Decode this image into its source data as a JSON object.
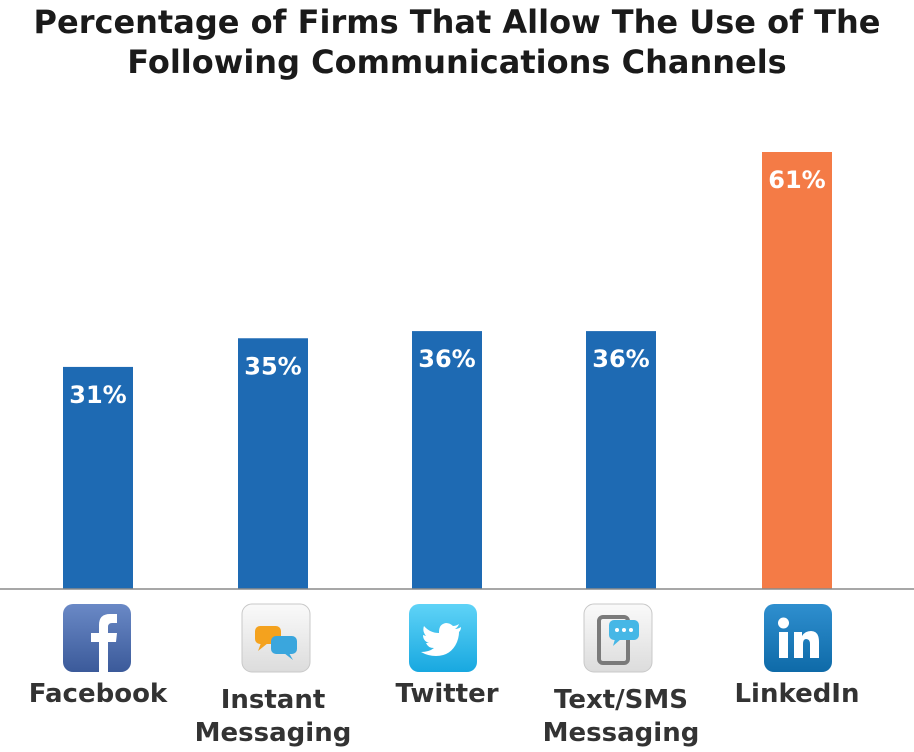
{
  "chart_data": {
    "type": "bar",
    "title_line1": "Percentage of Firms That Allow The Use of The",
    "title_line2": "Following Communications Channels",
    "categories": [
      "Facebook",
      "Instant Messaging",
      "Twitter",
      "Text/SMS Messaging",
      "LinkedIn"
    ],
    "label_lines": [
      [
        "Facebook"
      ],
      [
        "Instant",
        "Messaging"
      ],
      [
        "Twitter"
      ],
      [
        "Text/SMS",
        "Messaging"
      ],
      [
        "LinkedIn"
      ]
    ],
    "values": [
      31,
      35,
      36,
      36,
      61
    ],
    "value_labels": [
      "31%",
      "35%",
      "36%",
      "36%",
      "61%"
    ],
    "icons": [
      "facebook-icon",
      "chat-bubbles-icon",
      "twitter-icon",
      "sms-phone-icon",
      "linkedin-icon"
    ],
    "bar_colors": [
      "#1e6ab3",
      "#1e6ab3",
      "#1e6ab3",
      "#1e6ab3",
      "#f47b46"
    ],
    "value_label_color": "#ffffff",
    "ylim": [
      0,
      61
    ],
    "grid": false,
    "legend": "none"
  }
}
